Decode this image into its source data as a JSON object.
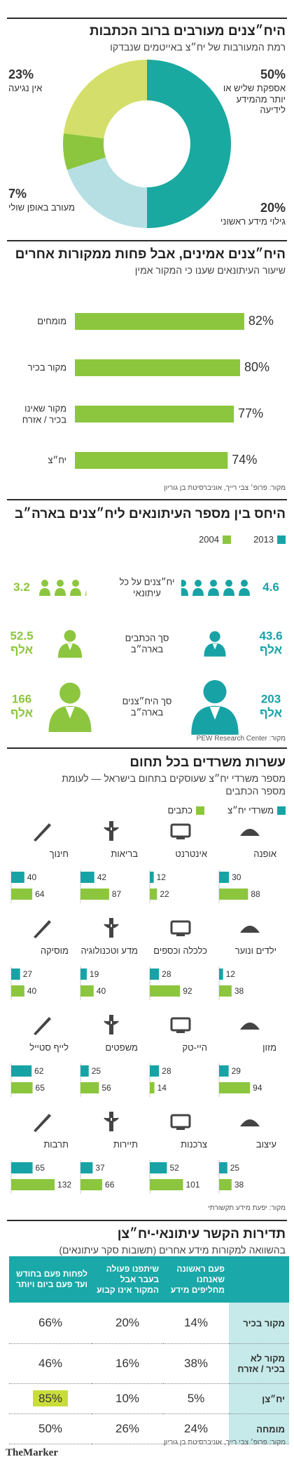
{
  "chart_data": [
    {
      "type": "pie",
      "title": "היח״צנים מעורבים ברוב הכתבות",
      "subtitle": "רמת המעורבות של יח״צ באייטמים שנבדקו",
      "categories": [
        "אספקת שליש או יותר מהמידע לידיעה",
        "גילוי מידע ראשוני",
        "מעורב באופן שולי",
        "אין נגיעה"
      ],
      "values": [
        50,
        20,
        7,
        23
      ],
      "value_labels": [
        "50%",
        "20%",
        "7%",
        "23%"
      ],
      "colors": [
        "#1aa9a0",
        "#b6dfe3",
        "#8cc63e",
        "#d3df6a"
      ]
    },
    {
      "type": "bar",
      "orientation": "horizontal",
      "title": "היח״צנים אמינים, אבל פחות ממקורות אחרים",
      "subtitle": "שיעור העיתונאים שענו כי המקור אמין",
      "categories": [
        "מומחים",
        "מקור בכיר",
        "מקור שאינו בכיר / אזרח",
        "יח״צ"
      ],
      "values": [
        82,
        80,
        77,
        74
      ],
      "value_labels": [
        "82%",
        "80%",
        "77%",
        "74%"
      ],
      "color": "#8cc63e",
      "source": "מקור: פרופ׳ צבי רייך, אוניברסיטת בן גוריון"
    },
    {
      "type": "pictogram",
      "title": "היחס בין מספר העיתונאים ליח״צנים בארה״ב",
      "categories": [
        "יח״צנים על כל עיתונאי",
        "סך הכתבים בארה״ב",
        "סך היח״צנים בארה״ב"
      ],
      "series": [
        {
          "name": "2013",
          "color": "#17a3a6",
          "values": [
            4.6,
            43.6,
            203
          ],
          "value_labels": [
            "4.6",
            "43.6 אלף",
            "203 אלף"
          ]
        },
        {
          "name": "2004",
          "color": "#8cc63e",
          "values": [
            3.2,
            52.5,
            166
          ],
          "value_labels": [
            "3.2",
            "52.5 אלף",
            "166 אלף"
          ]
        }
      ],
      "source": "מקור: PEW Research Center"
    },
    {
      "type": "bar",
      "title": "עשרות משרדים בכל תחום",
      "subtitle": "מספר משרדי יח״צ שעוסקים בתחום בישראל — לעומת מספר הכתבים",
      "categories": [
        "אופנה",
        "אינטרנט",
        "בריאות",
        "חינוך",
        "ילדים ונוער",
        "כלכלה וכספים",
        "מדע וטכנולוגיה",
        "מוסיקה",
        "מזון",
        "היי-טק",
        "משפטים",
        "לייף סטייל",
        "עיצוב",
        "צרכנות",
        "תיירות",
        "תרבות"
      ],
      "series": [
        {
          "name": "משרדי יח״צ",
          "color": "#17a3a6",
          "values": [
            30,
            12,
            42,
            40,
            12,
            28,
            19,
            27,
            29,
            28,
            25,
            62,
            25,
            52,
            37,
            65
          ]
        },
        {
          "name": "כתבים",
          "color": "#8cc63e",
          "values": [
            88,
            22,
            87,
            64,
            38,
            92,
            40,
            40,
            94,
            14,
            56,
            65,
            38,
            101,
            66,
            132
          ]
        }
      ],
      "source": "מקור: יפעת מידע תקשורתי"
    }
  ],
  "table": {
    "title": "תדירות הקשר עיתונאי-יח״צן",
    "subtitle": "בהשוואה למקורות מידע אחרים (תשובות סקר עיתונאים)",
    "columns": [
      "פעם ראשונה שאנחנו מחליפים מידע",
      "שיתפנו פעולה בעבר אבל המקור אינו קבוע",
      "לפחות פעם בחודש ועד פעם ביום ויותר"
    ],
    "rows": [
      {
        "label": "מקור בכיר",
        "cells": [
          "14%",
          "20%",
          "66%"
        ]
      },
      {
        "label": "מקור לא בכיר / אזרח",
        "cells": [
          "38%",
          "16%",
          "46%"
        ]
      },
      {
        "label": "יח״צן",
        "cells": [
          "5%",
          "10%",
          "85%"
        ]
      },
      {
        "label": "מומחה",
        "cells": [
          "24%",
          "26%",
          "50%"
        ]
      }
    ],
    "source": "מקור: פרופ׳ צבי רייך, אוניברסיטת בן גוריון"
  },
  "footer": {
    "logo": "TheMarker"
  }
}
